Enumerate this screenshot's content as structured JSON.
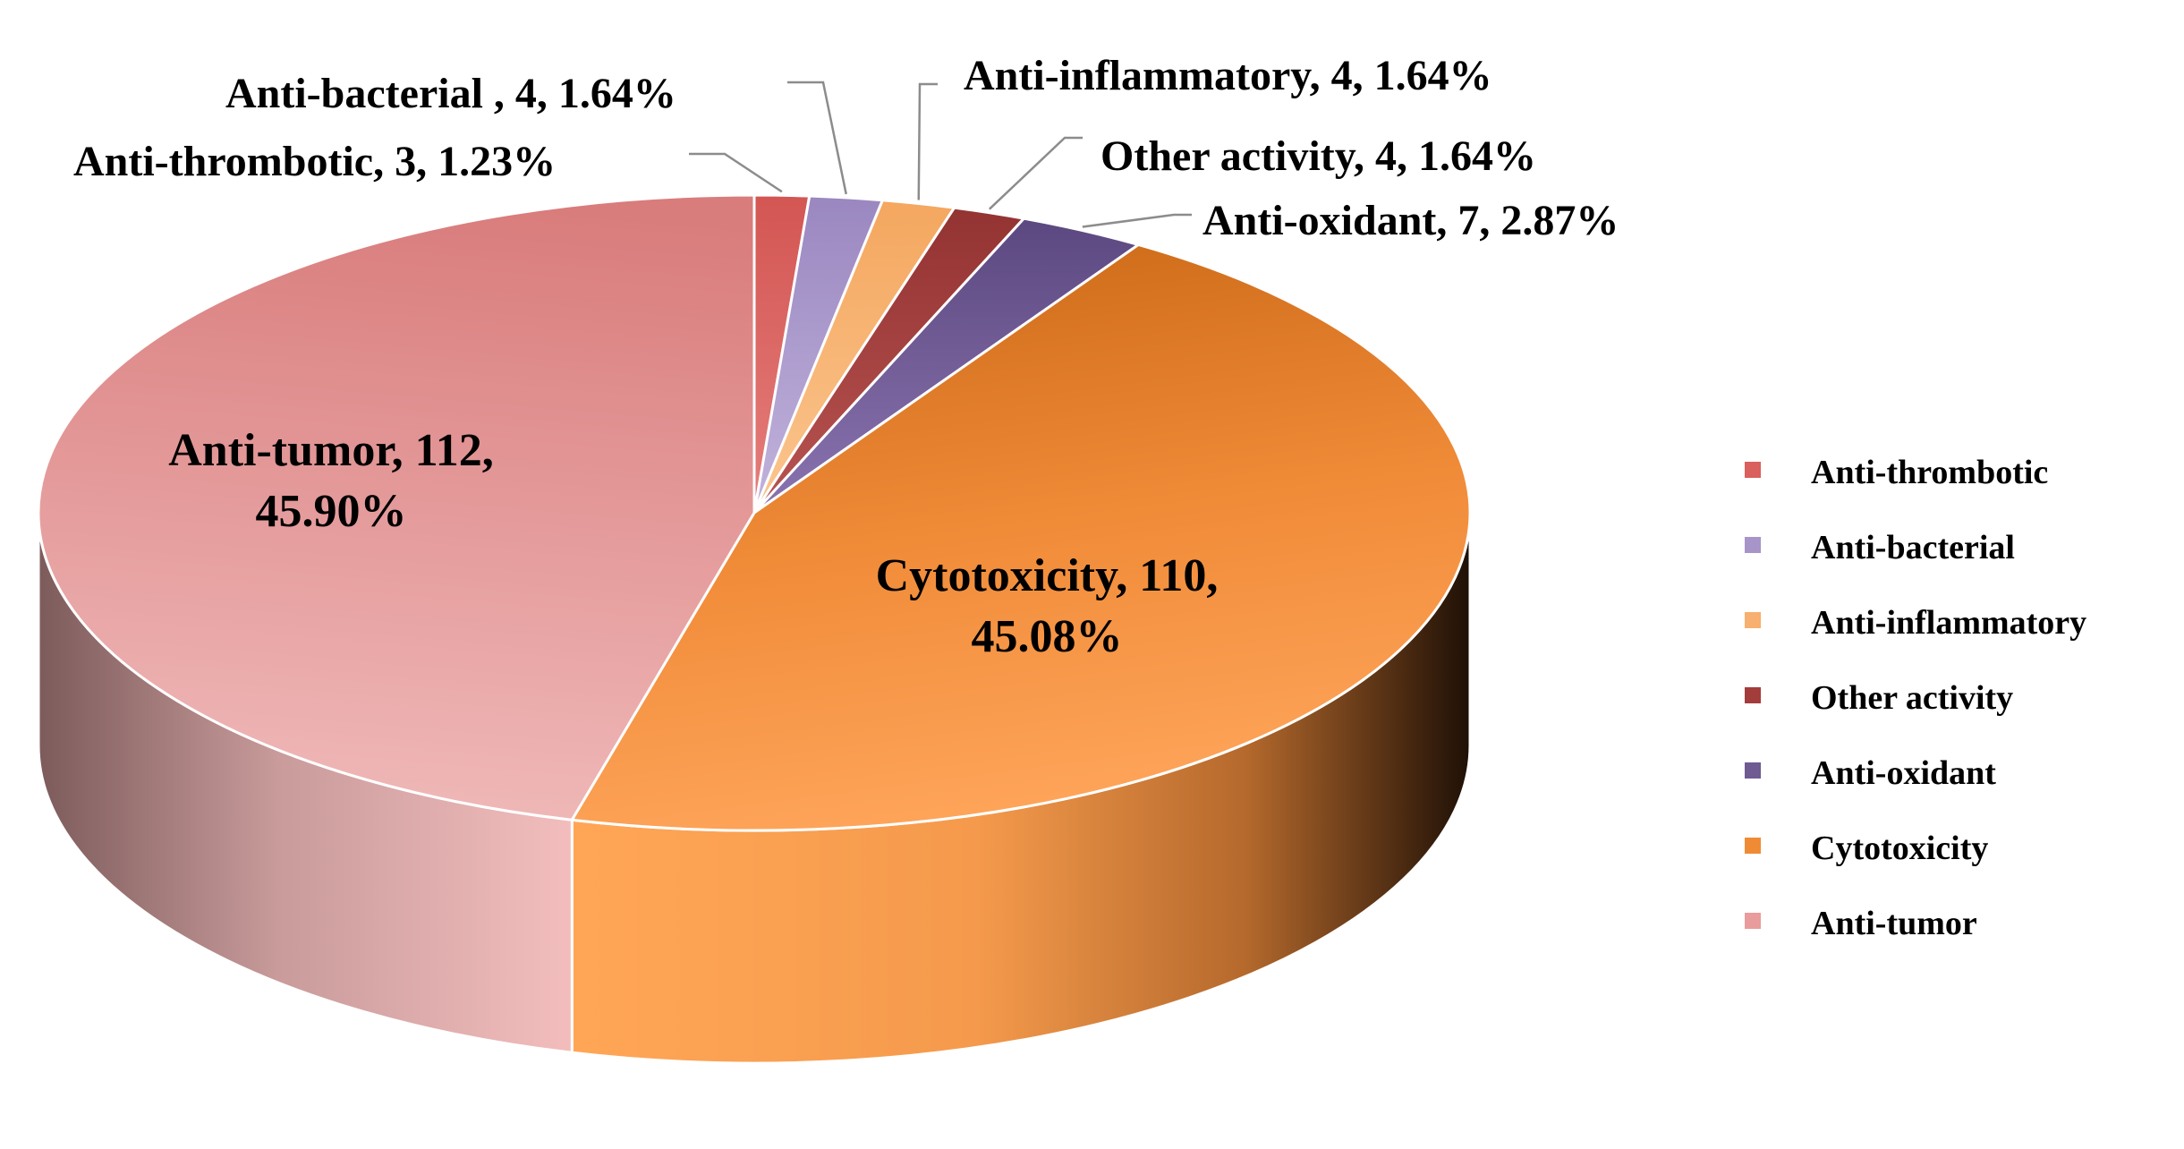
{
  "chart_data": {
    "type": "pie",
    "style": "3d",
    "title": "",
    "slices": [
      {
        "name": "Anti-thrombotic",
        "value": 3,
        "percent": "1.23%",
        "label": "Anti-thrombotic, 3, 1.23%",
        "color": "#d9605d"
      },
      {
        "name": "Anti-bacterial",
        "value": 4,
        "percent": "1.64%",
        "label": "Anti-bacterial , 4, 1.64%",
        "color": "#a795c9"
      },
      {
        "name": "Anti-inflammatory",
        "value": 4,
        "percent": "1.64%",
        "label": "Anti-inflammatory, 4, 1.64%",
        "color": "#f7b06f"
      },
      {
        "name": "Other activity",
        "value": 4,
        "percent": "1.64%",
        "label": "Other activity, 4, 1.64%",
        "color": "#a33d3b"
      },
      {
        "name": "Anti-oxidant",
        "value": 7,
        "percent": "2.87%",
        "label": "Anti-oxidant, 7, 2.87%",
        "color": "#6f5a92"
      },
      {
        "name": "Cytotoxicity",
        "value": 110,
        "percent": "45.08%",
        "label_line1": "Cytotoxicity, 110,",
        "label_line2": "45.08%",
        "color": "#f08b35"
      },
      {
        "name": "Anti-tumor",
        "value": 112,
        "percent": "45.90%",
        "label_line1": "Anti-tumor, 112,",
        "label_line2": "45.90%",
        "color": "#e89c9c"
      }
    ],
    "legend": {
      "position": "right",
      "entries": [
        "Anti-thrombotic",
        "Anti-bacterial",
        "Anti-inflammatory",
        "Other activity",
        "Anti-oxidant",
        "Cytotoxicity",
        "Anti-tumor"
      ]
    }
  }
}
